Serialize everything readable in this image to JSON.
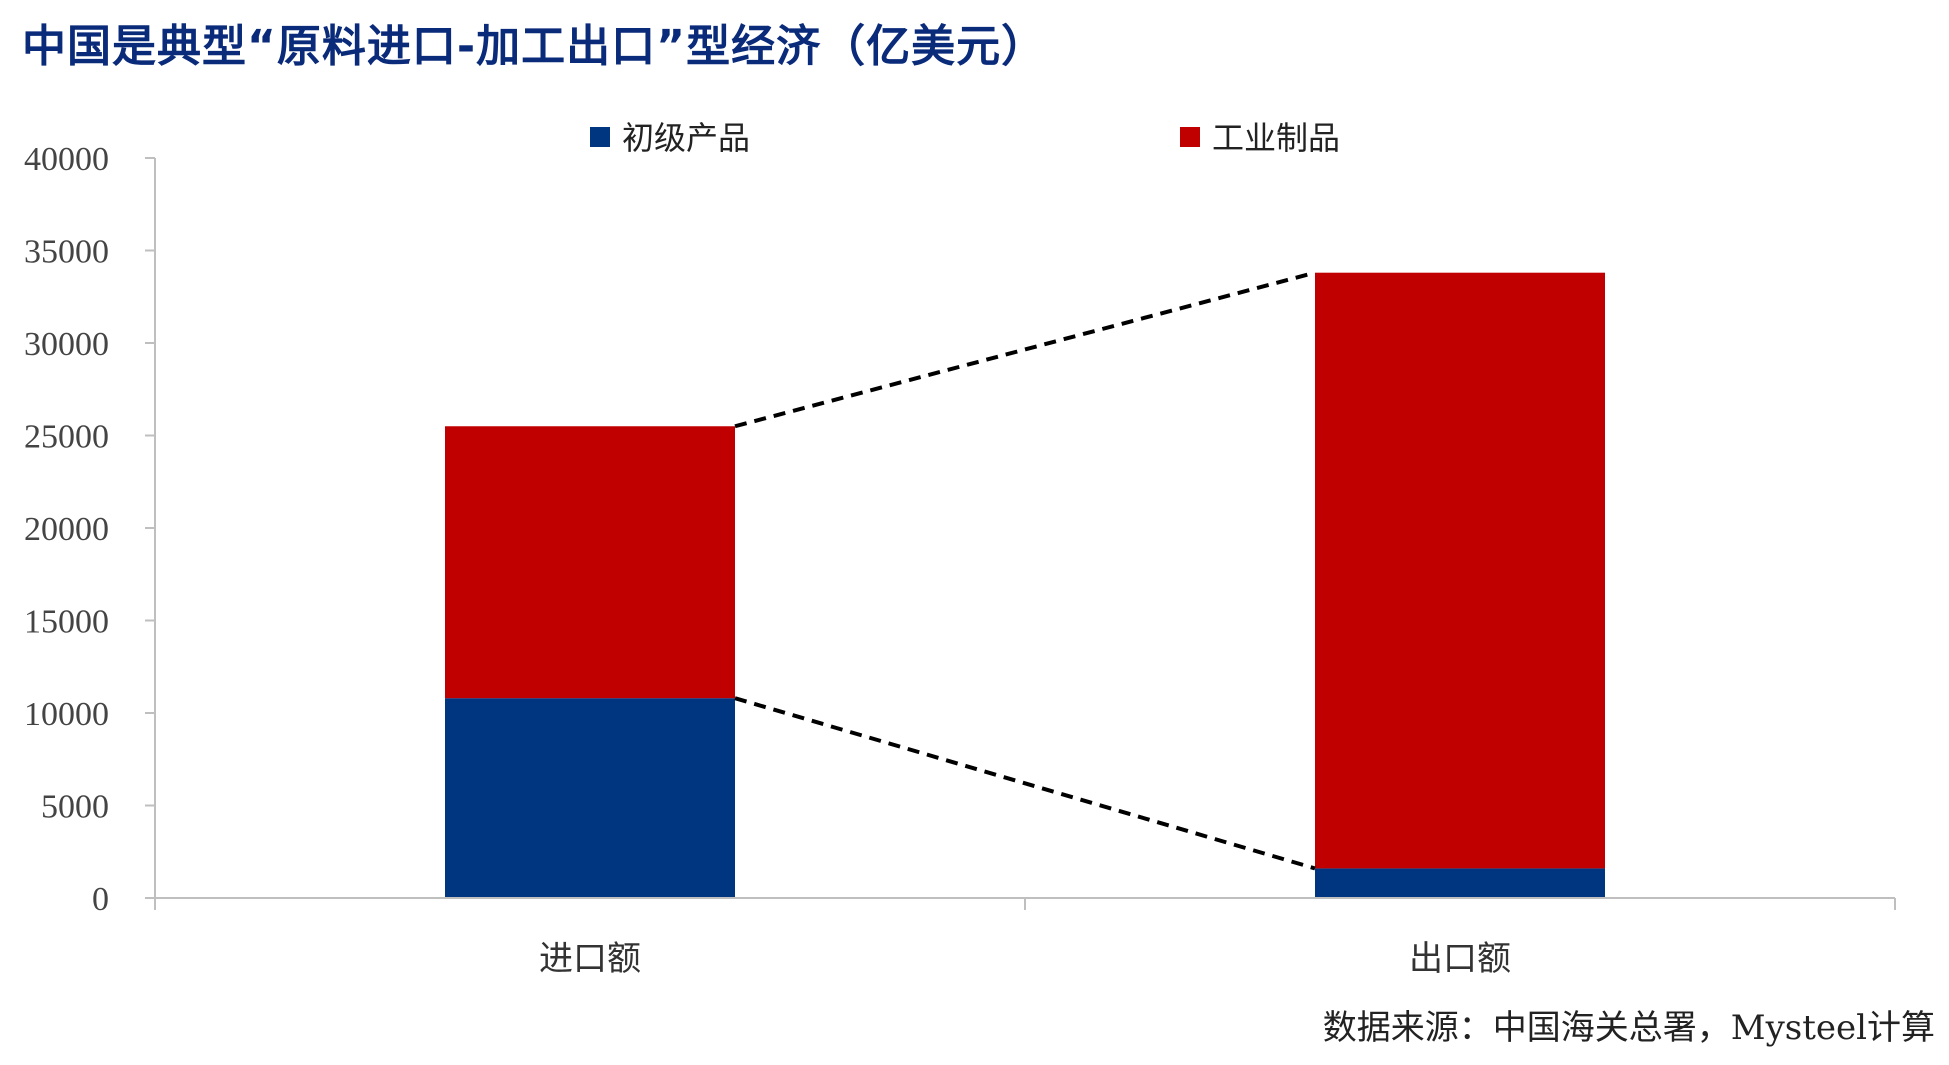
{
  "chart_data": {
    "type": "bar",
    "stacked": true,
    "title": "中国是典型“原料进口-加工出口”型经济（亿美元）",
    "categories": [
      "进口额",
      "出口额"
    ],
    "series": [
      {
        "name": "初级产品",
        "values": [
          10800,
          1600
        ],
        "color": "#003580"
      },
      {
        "name": "工业制品",
        "values": [
          14700,
          32200
        ],
        "color": "#c00000"
      }
    ],
    "ylim": [
      0,
      40000
    ],
    "yticks": [
      0,
      5000,
      10000,
      15000,
      20000,
      25000,
      30000,
      35000,
      40000
    ],
    "xlabel": "",
    "ylabel": "",
    "legend_position": "top",
    "connector_lines": "dashed",
    "grid": false
  },
  "source": "数据来源：中国海关总署，Mysteel计算"
}
